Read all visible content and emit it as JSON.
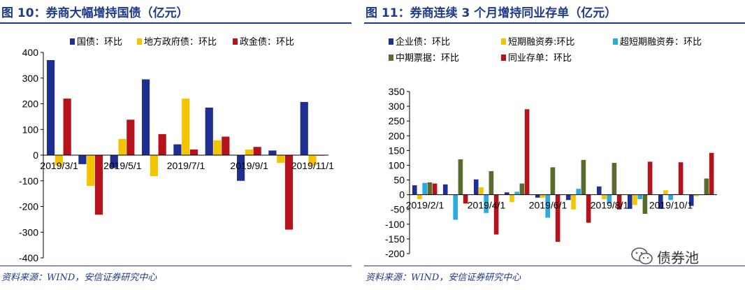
{
  "left_panel": {
    "title": "图 10：券商大幅增持国债（亿元）",
    "source": "资料来源：WIND，安信证券研究中心"
  },
  "right_panel": {
    "title": "图 11：券商连续 3 个月增持同业存单（亿元）",
    "source": "资料来源：WIND，安信证券研究中心"
  },
  "watermark": {
    "text": "债券池",
    "icon": "wechat-icon"
  },
  "chart_data": [
    {
      "type": "bar",
      "title": "",
      "xlabel": "",
      "ylabel": "",
      "ylim": [
        -400,
        400
      ],
      "yticks": [
        400,
        300,
        200,
        100,
        0,
        -100,
        -200,
        -300,
        -400
      ],
      "categories": [
        "2019/3/1",
        "2019/4/1",
        "2019/5/1",
        "2019/6/1",
        "2019/7/1",
        "2019/8/1",
        "2019/9/1",
        "2019/10/1",
        "2019/11/1"
      ],
      "tick_labels": [
        {
          "index": 0,
          "label": "2019/3/1"
        },
        {
          "index": 2,
          "label": "2019/5/1"
        },
        {
          "index": 4,
          "label": "2019/7/1"
        },
        {
          "index": 6,
          "label": "2019/9/1"
        },
        {
          "index": 8,
          "label": "2019/11/1"
        }
      ],
      "legend_position": "top",
      "grid": false,
      "series": [
        {
          "name": "国债：环比",
          "color": "#1f2f8f",
          "values": [
            370,
            -35,
            -50,
            295,
            42,
            185,
            -100,
            18,
            207
          ]
        },
        {
          "name": "地方政府债：环比",
          "color": "#f5c400",
          "values": [
            -40,
            -120,
            63,
            -82,
            220,
            58,
            22,
            -30,
            -40
          ]
        },
        {
          "name": "政金债：环比",
          "color": "#b5121b",
          "values": [
            220,
            -232,
            138,
            82,
            22,
            72,
            32,
            -290,
            -2
          ]
        }
      ]
    },
    {
      "type": "bar",
      "title": "",
      "xlabel": "",
      "ylabel": "",
      "ylim": [
        -200,
        350
      ],
      "yticks": [
        350,
        300,
        250,
        200,
        150,
        100,
        50,
        0,
        -50,
        -100,
        -150,
        -200
      ],
      "categories": [
        "2019/2/1",
        "2019/3/1",
        "2019/4/1",
        "2019/5/1",
        "2019/6/1",
        "2019/7/1",
        "2019/8/1",
        "2019/9/1",
        "2019/10/1",
        "2019/11/1"
      ],
      "tick_labels": [
        {
          "index": 0,
          "label": "2019/2/1"
        },
        {
          "index": 2,
          "label": "2019/4/1"
        },
        {
          "index": 4,
          "label": "2019/6/1"
        },
        {
          "index": 6,
          "label": "2019/8/1"
        },
        {
          "index": 8,
          "label": "2019/10/1"
        }
      ],
      "legend_position": "top",
      "grid": false,
      "series": [
        {
          "name": "企业债：环比",
          "color": "#1f2f8f",
          "values": [
            32,
            35,
            52,
            8,
            -10,
            -18,
            28,
            -48,
            -48,
            -38
          ]
        },
        {
          "name": "短期融资券:环比",
          "color": "#f5c400",
          "values": [
            -15,
            2,
            25,
            -25,
            -10,
            -50,
            -15,
            -35,
            15,
            -5
          ]
        },
        {
          "name": "超短期融资券：环比",
          "color": "#29abe2",
          "values": [
            40,
            -85,
            -62,
            10,
            -78,
            20,
            -30,
            -15,
            -18,
            0
          ]
        },
        {
          "name": "中期票据：环比",
          "color": "#5a6b2e",
          "values": [
            42,
            120,
            80,
            38,
            93,
            118,
            108,
            -65,
            2,
            55
          ]
        },
        {
          "name": "同业存单：环比",
          "color": "#b5121b",
          "values": [
            38,
            -30,
            -135,
            290,
            -160,
            -95,
            -50,
            112,
            110,
            142
          ]
        }
      ]
    }
  ]
}
